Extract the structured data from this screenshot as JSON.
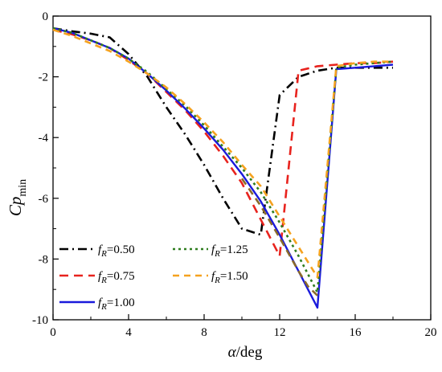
{
  "chart_data": {
    "type": "line",
    "xlabel_main": "α",
    "xlabel_unit": "/deg",
    "ylabel_main": "Cp",
    "ylabel_sub": "min",
    "xlim": [
      0,
      20
    ],
    "ylim": [
      -10,
      0
    ],
    "xticks": [
      0,
      4,
      8,
      12,
      16,
      20
    ],
    "yticks": [
      0,
      -2,
      -4,
      -6,
      -8,
      -10
    ],
    "minor_x_step": 2,
    "minor_y_step": 1,
    "grid": false,
    "legend_position": "bottom-left",
    "series": [
      {
        "name": "fR=0.50",
        "label_var": "f",
        "label_sub": "R",
        "label_value": "=0.50",
        "color": "#000000",
        "dash": "11 5 2 5",
        "x": [
          0,
          1,
          2,
          3,
          4,
          5,
          6,
          7,
          8,
          9,
          10,
          11,
          12,
          13,
          14,
          15,
          16,
          17,
          18
        ],
        "y": [
          -0.4,
          -0.5,
          -0.58,
          -0.7,
          -1.25,
          -2.0,
          -3.0,
          -3.9,
          -4.9,
          -6.0,
          -7.0,
          -7.2,
          -2.6,
          -2.0,
          -1.8,
          -1.7,
          -1.7,
          -1.7,
          -1.7
        ]
      },
      {
        "name": "fR=0.75",
        "label_var": "f",
        "label_sub": "R",
        "label_value": "=0.75",
        "color": "#e8231e",
        "dash": "11 7",
        "x": [
          0,
          1,
          2,
          3,
          4,
          5,
          6,
          7,
          8,
          9,
          10,
          11,
          12,
          13,
          14,
          15,
          16,
          17,
          18
        ],
        "y": [
          -0.45,
          -0.6,
          -0.8,
          -1.05,
          -1.45,
          -1.9,
          -2.5,
          -3.1,
          -3.8,
          -4.6,
          -5.5,
          -6.7,
          -7.9,
          -1.8,
          -1.65,
          -1.6,
          -1.55,
          -1.55,
          -1.5
        ]
      },
      {
        "name": "fR=1.00",
        "label_var": "f",
        "label_sub": "R",
        "label_value": "=1.00",
        "color": "#1a1adb",
        "dash": "",
        "x": [
          0,
          1,
          2,
          3,
          4,
          5,
          6,
          7,
          8,
          9,
          10,
          11,
          12,
          13,
          14,
          15,
          16,
          17,
          18
        ],
        "y": [
          -0.4,
          -0.55,
          -0.8,
          -1.05,
          -1.4,
          -1.9,
          -2.45,
          -3.05,
          -3.7,
          -4.4,
          -5.2,
          -6.1,
          -7.2,
          -8.4,
          -9.6,
          -1.75,
          -1.7,
          -1.65,
          -1.6
        ]
      },
      {
        "name": "fR=1.25",
        "label_var": "f",
        "label_sub": "R",
        "label_value": "=1.25",
        "color": "#2f7d1f",
        "dash": "3 4",
        "x": [
          0,
          1,
          2,
          3,
          4,
          5,
          6,
          7,
          8,
          9,
          10,
          11,
          12,
          13,
          14,
          15,
          16,
          17,
          18
        ],
        "y": [
          -0.4,
          -0.55,
          -0.8,
          -1.05,
          -1.4,
          -1.85,
          -2.4,
          -2.95,
          -3.6,
          -4.3,
          -5.0,
          -5.8,
          -6.8,
          -7.9,
          -9.1,
          -1.7,
          -1.6,
          -1.55,
          -1.5
        ]
      },
      {
        "name": "fR=1.50",
        "label_var": "f",
        "label_sub": "R",
        "label_value": "=1.50",
        "color": "#f5a21f",
        "dash": "8 6",
        "x": [
          0,
          1,
          2,
          3,
          4,
          5,
          6,
          7,
          8,
          9,
          10,
          11,
          12,
          13,
          14,
          15,
          16,
          17,
          18
        ],
        "y": [
          -0.45,
          -0.65,
          -0.9,
          -1.15,
          -1.5,
          -1.9,
          -2.35,
          -2.9,
          -3.5,
          -4.15,
          -4.9,
          -5.6,
          -6.6,
          -7.6,
          -8.6,
          -1.65,
          -1.55,
          -1.5,
          -1.5
        ]
      },
      {
        "name": "",
        "label_var": "",
        "label_sub": "",
        "label_value": "",
        "color": "#8a6a2a",
        "dash": "9 6",
        "x": [
          10,
          11,
          12,
          13,
          13.5,
          14
        ],
        "y": [
          -5.35,
          -6.25,
          -7.3,
          -8.4,
          -8.9,
          -9.2
        ]
      }
    ]
  }
}
